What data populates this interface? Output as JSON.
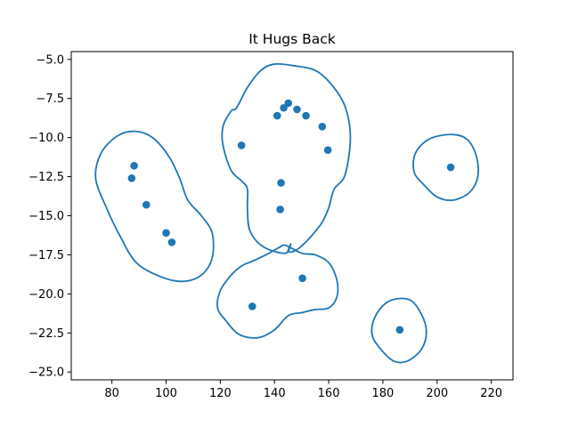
{
  "chart_data": {
    "type": "scatter",
    "title": "It Hugs Back",
    "xlabel": "",
    "ylabel": "",
    "xlim": [
      65,
      228
    ],
    "ylim": [
      -25.5,
      -4.5
    ],
    "x_ticks": [
      80,
      100,
      120,
      140,
      160,
      180,
      200,
      220
    ],
    "y_ticks": [
      -5.0,
      -7.5,
      -10.0,
      -12.5,
      -15.0,
      -17.5,
      -20.0,
      -22.5,
      -25.0
    ],
    "x_tick_labels": [
      "80",
      "100",
      "120",
      "140",
      "160",
      "180",
      "200",
      "220"
    ],
    "y_tick_labels": [
      "−5.0",
      "−7.5",
      "−10.0",
      "−12.5",
      "−15.0",
      "−17.5",
      "−20.0",
      "−22.5",
      "−25.0"
    ],
    "grid": false,
    "colors": {
      "series": "#1f77b4",
      "axes": "#000000",
      "background": "#ffffff"
    },
    "points": [
      {
        "x": 88.2,
        "y": -11.8
      },
      {
        "x": 87.3,
        "y": -12.6
      },
      {
        "x": 92.7,
        "y": -14.3
      },
      {
        "x": 100.0,
        "y": -16.1
      },
      {
        "x": 102.1,
        "y": -16.7
      },
      {
        "x": 127.8,
        "y": -10.5
      },
      {
        "x": 141.0,
        "y": -8.6
      },
      {
        "x": 143.4,
        "y": -8.1
      },
      {
        "x": 145.1,
        "y": -7.8
      },
      {
        "x": 148.3,
        "y": -8.2
      },
      {
        "x": 151.6,
        "y": -8.6
      },
      {
        "x": 157.6,
        "y": -9.3
      },
      {
        "x": 159.7,
        "y": -10.8
      },
      {
        "x": 142.4,
        "y": -12.9
      },
      {
        "x": 142.1,
        "y": -14.6
      },
      {
        "x": 150.3,
        "y": -19.0
      },
      {
        "x": 131.8,
        "y": -20.8
      },
      {
        "x": 205.0,
        "y": -11.9
      },
      {
        "x": 186.2,
        "y": -22.3
      }
    ],
    "contours": [
      [
        [
          88.5,
          -9.6
        ],
        [
          95,
          -10.0
        ],
        [
          101,
          -11.2
        ],
        [
          105,
          -12.6
        ],
        [
          108,
          -14.0
        ],
        [
          113,
          -15.0
        ],
        [
          117,
          -16.1
        ],
        [
          117,
          -17.7
        ],
        [
          113,
          -18.8
        ],
        [
          106,
          -19.2
        ],
        [
          98,
          -18.9
        ],
        [
          89,
          -18.0
        ],
        [
          83,
          -16.3
        ],
        [
          78,
          -14.5
        ],
        [
          74,
          -12.6
        ],
        [
          76,
          -11.0
        ],
        [
          82,
          -9.9
        ],
        [
          88.5,
          -9.6
        ]
      ],
      [
        [
          147,
          -5.4
        ],
        [
          155,
          -5.7
        ],
        [
          161,
          -6.6
        ],
        [
          166,
          -8.0
        ],
        [
          168,
          -10.0
        ],
        [
          166,
          -12.4
        ],
        [
          162,
          -13.3
        ],
        [
          160,
          -14.5
        ],
        [
          158,
          -15.3
        ],
        [
          156,
          -15.8
        ],
        [
          152,
          -16.6
        ],
        [
          148,
          -17.2
        ],
        [
          145,
          -17.3
        ],
        [
          146,
          -16.8
        ],
        [
          144,
          -17.4
        ],
        [
          136,
          -17.0
        ],
        [
          131,
          -16.0
        ],
        [
          130,
          -14.6
        ],
        [
          130,
          -13.3
        ],
        [
          128,
          -12.8
        ],
        [
          124,
          -12.1
        ],
        [
          121,
          -10.5
        ],
        [
          121,
          -9.3
        ],
        [
          124,
          -8.3
        ],
        [
          126,
          -8.1
        ],
        [
          130,
          -6.8
        ],
        [
          135,
          -5.7
        ],
        [
          140,
          -5.3
        ],
        [
          147,
          -5.4
        ]
      ],
      [
        [
          144.2,
          -16.9
        ],
        [
          150,
          -17.4
        ],
        [
          155,
          -17.5
        ],
        [
          160,
          -18.0
        ],
        [
          163,
          -19.1
        ],
        [
          163,
          -20.2
        ],
        [
          160,
          -20.9
        ],
        [
          155,
          -21.0
        ],
        [
          150,
          -21.2
        ],
        [
          145,
          -21.4
        ],
        [
          140,
          -22.3
        ],
        [
          134,
          -22.8
        ],
        [
          127,
          -22.6
        ],
        [
          122,
          -21.7
        ],
        [
          119,
          -20.9
        ],
        [
          120,
          -19.8
        ],
        [
          124,
          -18.8
        ],
        [
          128,
          -18.2
        ],
        [
          132,
          -17.9
        ],
        [
          138,
          -17.4
        ],
        [
          142,
          -17.0
        ],
        [
          144.2,
          -16.9
        ]
      ],
      [
        [
          205,
          -9.8
        ],
        [
          211,
          -10.1
        ],
        [
          214.5,
          -11.2
        ],
        [
          215,
          -12.5
        ],
        [
          212,
          -13.5
        ],
        [
          206,
          -14.0
        ],
        [
          200,
          -13.8
        ],
        [
          195,
          -13.0
        ],
        [
          191.5,
          -12.2
        ],
        [
          192,
          -11.0
        ],
        [
          197,
          -10.1
        ],
        [
          205,
          -9.8
        ]
      ],
      [
        [
          186,
          -20.3
        ],
        [
          191,
          -20.5
        ],
        [
          195,
          -21.6
        ],
        [
          196,
          -22.6
        ],
        [
          194,
          -23.6
        ],
        [
          189,
          -24.3
        ],
        [
          184,
          -24.3
        ],
        [
          179,
          -23.5
        ],
        [
          176,
          -22.6
        ],
        [
          177,
          -21.5
        ],
        [
          181,
          -20.6
        ],
        [
          186,
          -20.3
        ]
      ]
    ]
  }
}
